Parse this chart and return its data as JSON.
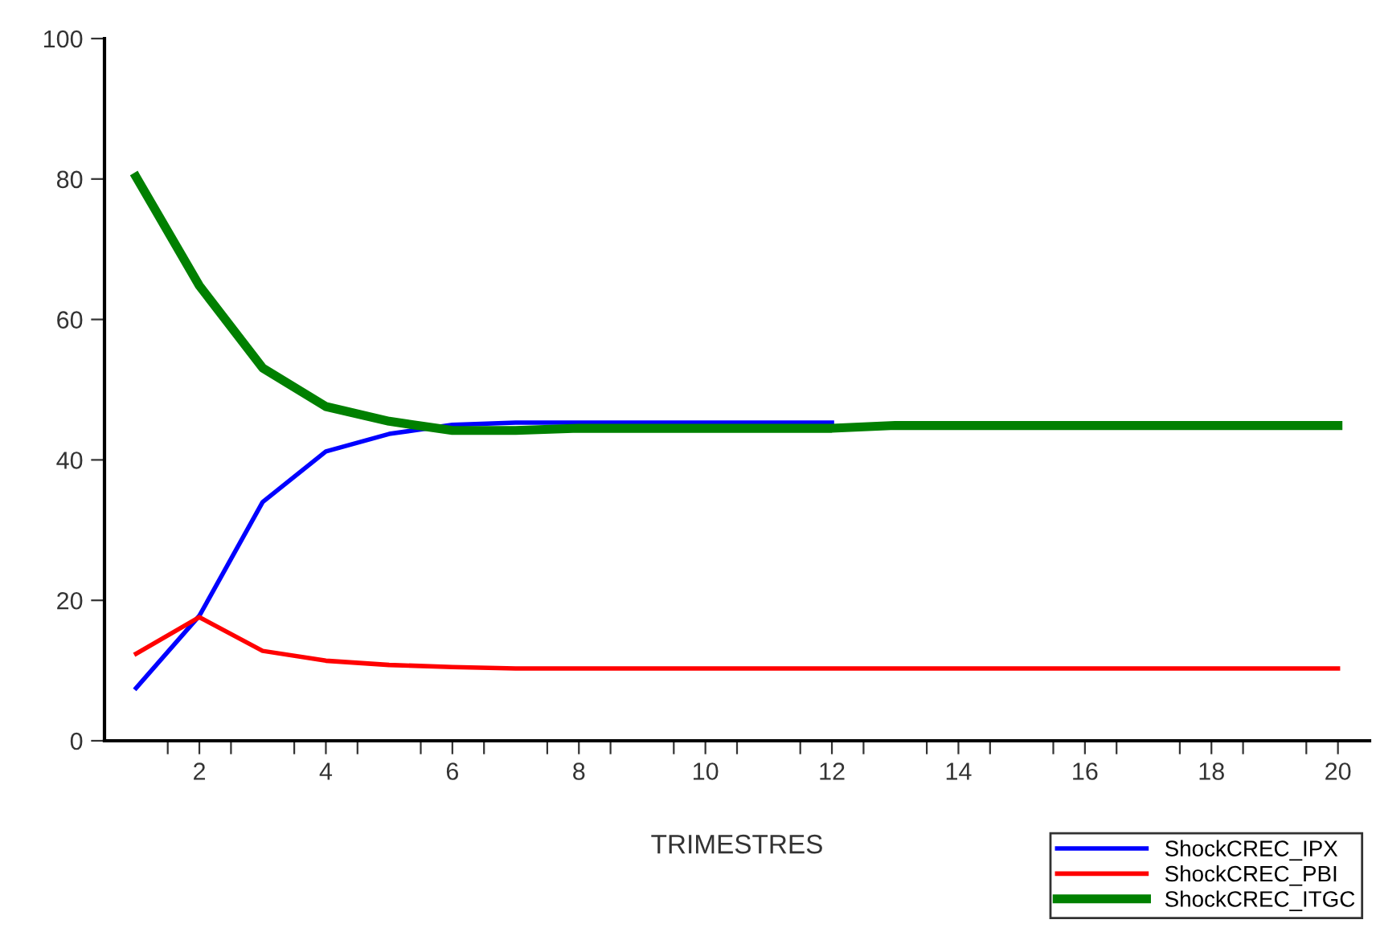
{
  "chart_data": {
    "type": "line",
    "xlabel": "TRIMESTRES",
    "x": [
      1,
      2,
      3,
      4,
      5,
      6,
      7,
      8,
      9,
      10,
      11,
      12,
      13,
      14,
      15,
      16,
      17,
      18,
      19,
      20
    ],
    "xlim": [
      0.5,
      20.5
    ],
    "xticks": [
      {
        "value": 1.5,
        "label": null
      },
      2,
      {
        "value": 2.5,
        "label": null
      },
      {
        "value": 3.5,
        "label": null
      },
      4,
      {
        "value": 4.5,
        "label": null
      },
      {
        "value": 5.5,
        "label": null
      },
      6,
      {
        "value": 6.5,
        "label": null
      },
      {
        "value": 7.5,
        "label": null
      },
      8,
      {
        "value": 8.5,
        "label": null
      },
      {
        "value": 9.5,
        "label": null
      },
      10,
      {
        "value": 10.5,
        "label": null
      },
      {
        "value": 11.5,
        "label": null
      },
      12,
      {
        "value": 12.5,
        "label": null
      },
      {
        "value": 13.5,
        "label": null
      },
      14,
      {
        "value": 14.5,
        "label": null
      },
      {
        "value": 15.5,
        "label": null
      },
      16,
      {
        "value": 16.5,
        "label": null
      },
      {
        "value": 17.5,
        "label": null
      },
      18,
      {
        "value": 18.5,
        "label": null
      },
      {
        "value": 19.5,
        "label": null
      },
      20
    ],
    "ylim": [
      0,
      100
    ],
    "yticks": [
      0,
      20,
      40,
      60,
      80,
      100
    ],
    "grid": false,
    "legend": "bottom right",
    "series": [
      {
        "name": "ShockCREC_IPX",
        "color": "#0000ff",
        "values": [
          7.5,
          17.8,
          34,
          41.2,
          43.7,
          45,
          45.3,
          45.3,
          45.3,
          45.3,
          45.3,
          45.3,
          null,
          null,
          null,
          null,
          null,
          null,
          null,
          null
        ]
      },
      {
        "name": "ShockCREC_PBI",
        "color": "#ff0000",
        "values": [
          12.4,
          17.6,
          12.8,
          11.4,
          10.8,
          10.5,
          10.3,
          10.3,
          10.3,
          10.3,
          10.3,
          10.3,
          10.3,
          10.3,
          10.3,
          10.3,
          10.3,
          10.3,
          10.3,
          10.3
        ]
      },
      {
        "name": "ShockCREC_ITGC",
        "color": "#008000",
        "values": [
          80.3,
          64.8,
          53.1,
          47.6,
          45.5,
          44.2,
          44.2,
          44.5,
          44.5,
          44.5,
          44.5,
          44.5,
          44.9,
          44.9,
          44.9,
          44.9,
          44.9,
          44.9,
          44.9,
          44.9
        ]
      }
    ]
  }
}
